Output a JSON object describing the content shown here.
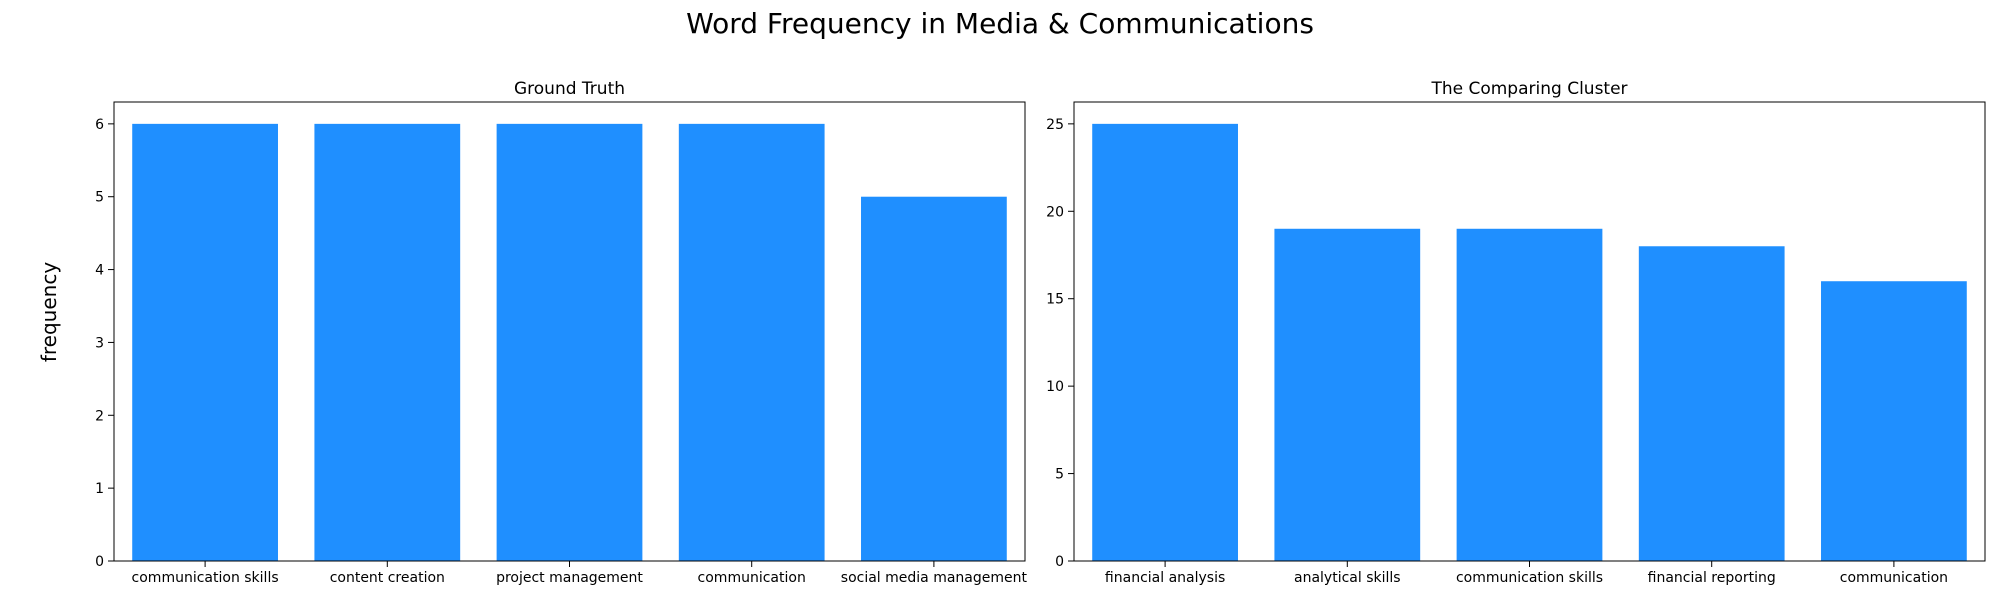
{
  "figure": {
    "title": "Word Frequency in Media & Communications",
    "ylabel": "frequency"
  },
  "colors": {
    "bar": "#1f8fff",
    "axis": "#000000",
    "background": "#ffffff"
  },
  "chart_data": [
    {
      "type": "bar",
      "title": "Ground Truth",
      "xlabel": "",
      "ylabel": "frequency",
      "categories": [
        "communication skills",
        "content creation",
        "project management",
        "communication",
        "social media management"
      ],
      "values": [
        6,
        6,
        6,
        6,
        5
      ],
      "ylim": [
        0,
        6.3
      ],
      "yticks": [
        0,
        1,
        2,
        3,
        4,
        5,
        6
      ],
      "grid": false
    },
    {
      "type": "bar",
      "title": "The Comparing Cluster",
      "xlabel": "",
      "ylabel": "",
      "categories": [
        "financial analysis",
        "analytical skills",
        "communication skills",
        "financial reporting",
        "communication"
      ],
      "values": [
        25,
        19,
        19,
        18,
        16
      ],
      "ylim": [
        0,
        26.25
      ],
      "yticks": [
        0,
        5,
        10,
        15,
        20,
        25
      ],
      "grid": false
    }
  ]
}
